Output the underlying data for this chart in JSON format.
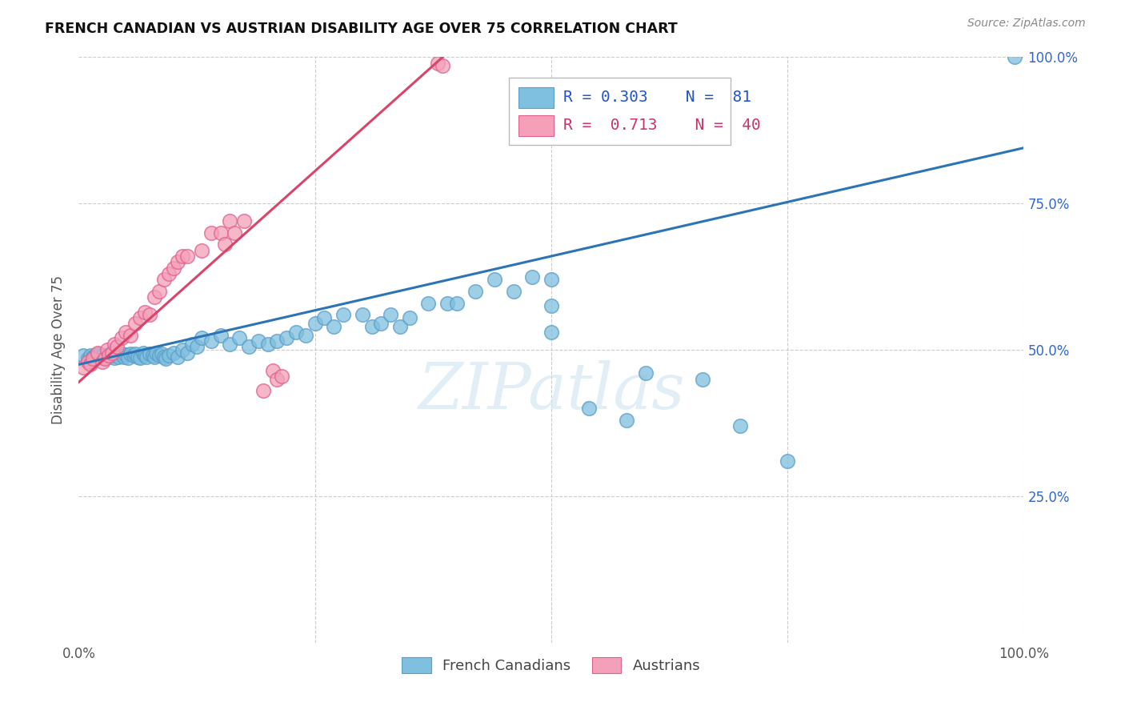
{
  "title": "FRENCH CANADIAN VS AUSTRIAN DISABILITY AGE OVER 75 CORRELATION CHART",
  "source": "Source: ZipAtlas.com",
  "ylabel": "Disability Age Over 75",
  "xlim": [
    0,
    1
  ],
  "ylim": [
    0,
    1
  ],
  "x_tick_labels": [
    "0.0%",
    "",
    "",
    "",
    "100.0%"
  ],
  "y_tick_labels_right": [
    "",
    "25.0%",
    "50.0%",
    "75.0%",
    "100.0%"
  ],
  "legend_text_blue": "R = 0.303    N =  81",
  "legend_text_pink": "R =  0.713    N =  40",
  "legend_label_blue": "French Canadians",
  "legend_label_pink": "Austrians",
  "blue_color": "#7fbfdf",
  "blue_edge_color": "#5b9ec9",
  "pink_color": "#f4a0b8",
  "pink_edge_color": "#e06090",
  "blue_line_color": "#2b74b5",
  "pink_line_color": "#d9456a",
  "watermark": "ZIPatlas",
  "blue_regression": [
    0.0,
    1.0,
    0.475,
    0.845
  ],
  "pink_regression": [
    0.0,
    0.385,
    0.445,
    1.0
  ],
  "blue_x": [
    0.005,
    0.01,
    0.012,
    0.015,
    0.018,
    0.02,
    0.022,
    0.025,
    0.028,
    0.03,
    0.032,
    0.035,
    0.038,
    0.04,
    0.042,
    0.045,
    0.048,
    0.05,
    0.052,
    0.055,
    0.058,
    0.06,
    0.062,
    0.065,
    0.068,
    0.07,
    0.072,
    0.075,
    0.078,
    0.08,
    0.082,
    0.085,
    0.088,
    0.09,
    0.092,
    0.095,
    0.1,
    0.105,
    0.11,
    0.115,
    0.12,
    0.125,
    0.13,
    0.14,
    0.15,
    0.16,
    0.17,
    0.18,
    0.19,
    0.2,
    0.21,
    0.22,
    0.23,
    0.24,
    0.25,
    0.26,
    0.27,
    0.28,
    0.3,
    0.31,
    0.32,
    0.33,
    0.34,
    0.35,
    0.37,
    0.39,
    0.4,
    0.42,
    0.44,
    0.46,
    0.48,
    0.5,
    0.54,
    0.58,
    0.6,
    0.66,
    0.7,
    0.75,
    0.5,
    0.5,
    0.99
  ],
  "blue_y": [
    0.49,
    0.485,
    0.49,
    0.488,
    0.492,
    0.488,
    0.493,
    0.49,
    0.487,
    0.492,
    0.488,
    0.493,
    0.487,
    0.492,
    0.488,
    0.493,
    0.488,
    0.492,
    0.487,
    0.493,
    0.49,
    0.493,
    0.488,
    0.487,
    0.495,
    0.49,
    0.488,
    0.493,
    0.49,
    0.488,
    0.495,
    0.49,
    0.493,
    0.488,
    0.485,
    0.49,
    0.495,
    0.488,
    0.5,
    0.495,
    0.51,
    0.505,
    0.52,
    0.515,
    0.525,
    0.51,
    0.52,
    0.505,
    0.515,
    0.51,
    0.515,
    0.52,
    0.53,
    0.525,
    0.545,
    0.555,
    0.54,
    0.56,
    0.56,
    0.54,
    0.545,
    0.56,
    0.54,
    0.555,
    0.58,
    0.58,
    0.58,
    0.6,
    0.62,
    0.6,
    0.625,
    0.62,
    0.4,
    0.38,
    0.46,
    0.45,
    0.37,
    0.31,
    0.575,
    0.53,
    1.0
  ],
  "pink_x": [
    0.005,
    0.01,
    0.012,
    0.015,
    0.02,
    0.025,
    0.028,
    0.03,
    0.032,
    0.035,
    0.038,
    0.04,
    0.045,
    0.05,
    0.055,
    0.06,
    0.065,
    0.07,
    0.075,
    0.08,
    0.085,
    0.09,
    0.095,
    0.1,
    0.105,
    0.11,
    0.115,
    0.13,
    0.14,
    0.15,
    0.155,
    0.16,
    0.165,
    0.175,
    0.195,
    0.205,
    0.21,
    0.215,
    0.38,
    0.385
  ],
  "pink_y": [
    0.47,
    0.48,
    0.475,
    0.485,
    0.495,
    0.48,
    0.485,
    0.5,
    0.49,
    0.495,
    0.51,
    0.505,
    0.52,
    0.53,
    0.525,
    0.545,
    0.555,
    0.565,
    0.56,
    0.59,
    0.6,
    0.62,
    0.63,
    0.64,
    0.65,
    0.66,
    0.66,
    0.67,
    0.7,
    0.7,
    0.68,
    0.72,
    0.7,
    0.72,
    0.43,
    0.465,
    0.45,
    0.455,
    0.99,
    0.985
  ]
}
